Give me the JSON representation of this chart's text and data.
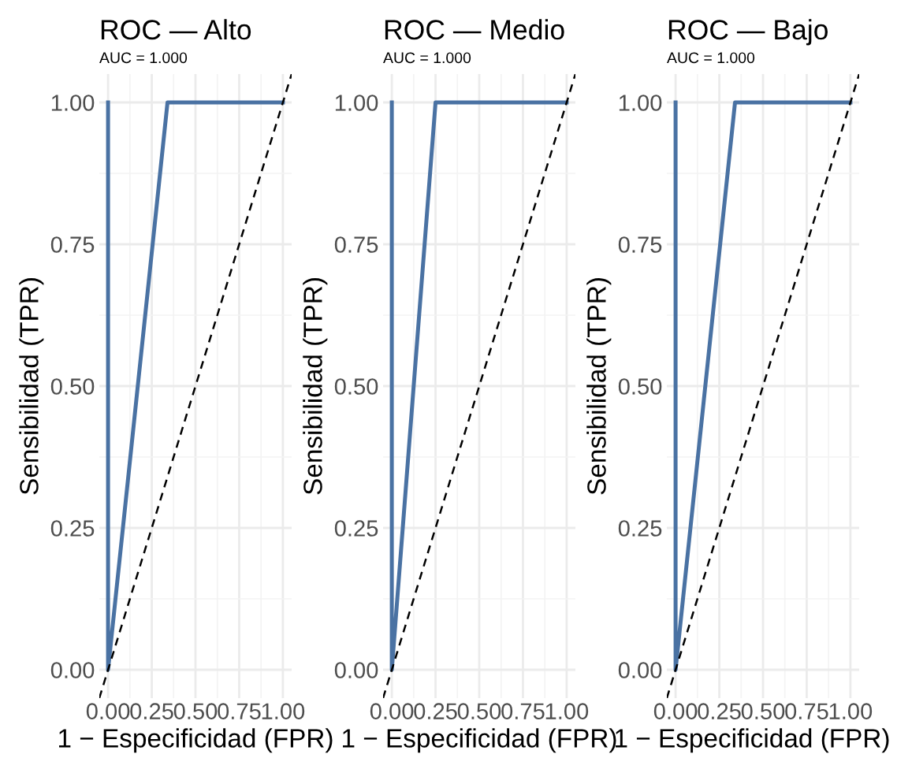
{
  "chart_data": [
    {
      "type": "line",
      "title": "ROC — Alto",
      "subtitle": "AUC = 1.000",
      "xlabel": "1 − Especificidad (FPR)",
      "ylabel": "Sensibilidad (TPR)",
      "xlim": [
        -0.05,
        1.05
      ],
      "ylim": [
        -0.05,
        1.05
      ],
      "xticks": [
        {
          "value": 0,
          "label": "0.00"
        },
        {
          "value": 0.25,
          "label": "0.25"
        },
        {
          "value": 0.5,
          "label": "0.50"
        },
        {
          "value": 0.75,
          "label": "0.75"
        },
        {
          "value": 1,
          "label": "1.00"
        }
      ],
      "yticks": [
        {
          "value": 0,
          "label": "0.00"
        },
        {
          "value": 0.25,
          "label": "0.25"
        },
        {
          "value": 0.5,
          "label": "0.50"
        },
        {
          "value": 0.75,
          "label": "0.75"
        },
        {
          "value": 1,
          "label": "1.00"
        }
      ],
      "grid": true,
      "marker": "none",
      "series": [
        {
          "color": "#4a72a3",
          "x": [
            0,
            0,
            0.34,
            1
          ],
          "values": [
            1,
            0,
            1,
            1
          ],
          "line_style": "solid"
        },
        {
          "color": "#000000",
          "x": [
            -0.05,
            1.05
          ],
          "values": [
            -0.05,
            1.05
          ],
          "line_style": "dashed"
        }
      ]
    },
    {
      "type": "line",
      "title": "ROC — Medio",
      "subtitle": "AUC = 1.000",
      "xlabel": "1 − Especificidad (FPR)",
      "ylabel": "Sensibilidad (TPR)",
      "xlim": [
        -0.05,
        1.05
      ],
      "ylim": [
        -0.05,
        1.05
      ],
      "xticks": [
        {
          "value": 0,
          "label": "0.00"
        },
        {
          "value": 0.25,
          "label": "0.25"
        },
        {
          "value": 0.5,
          "label": "0.50"
        },
        {
          "value": 0.75,
          "label": "0.75"
        },
        {
          "value": 1,
          "label": "1.00"
        }
      ],
      "yticks": [
        {
          "value": 0,
          "label": "0.00"
        },
        {
          "value": 0.25,
          "label": "0.25"
        },
        {
          "value": 0.5,
          "label": "0.50"
        },
        {
          "value": 0.75,
          "label": "0.75"
        },
        {
          "value": 1,
          "label": "1.00"
        }
      ],
      "grid": true,
      "marker": "none",
      "series": [
        {
          "color": "#4a72a3",
          "x": [
            0,
            0,
            0.25,
            1
          ],
          "values": [
            1,
            0,
            1,
            1
          ],
          "line_style": "solid"
        },
        {
          "color": "#000000",
          "x": [
            -0.05,
            1.05
          ],
          "values": [
            -0.05,
            1.05
          ],
          "line_style": "dashed"
        }
      ]
    },
    {
      "type": "line",
      "title": "ROC — Bajo",
      "subtitle": "AUC = 1.000",
      "xlabel": "1 − Especificidad (FPR)",
      "ylabel": "Sensibilidad (TPR)",
      "xlim": [
        -0.05,
        1.05
      ],
      "ylim": [
        -0.05,
        1.05
      ],
      "xticks": [
        {
          "value": 0,
          "label": "0.00"
        },
        {
          "value": 0.25,
          "label": "0.25"
        },
        {
          "value": 0.5,
          "label": "0.50"
        },
        {
          "value": 0.75,
          "label": "0.75"
        },
        {
          "value": 1,
          "label": "1.00"
        }
      ],
      "yticks": [
        {
          "value": 0,
          "label": "0.00"
        },
        {
          "value": 0.25,
          "label": "0.25"
        },
        {
          "value": 0.5,
          "label": "0.50"
        },
        {
          "value": 0.75,
          "label": "0.75"
        },
        {
          "value": 1,
          "label": "1.00"
        }
      ],
      "grid": true,
      "marker": "none",
      "series": [
        {
          "color": "#4a72a3",
          "x": [
            0,
            0,
            0.34,
            1
          ],
          "values": [
            1,
            0,
            1,
            1
          ],
          "line_style": "solid"
        },
        {
          "color": "#000000",
          "x": [
            -0.05,
            1.05
          ],
          "values": [
            -0.05,
            1.05
          ],
          "line_style": "dashed"
        }
      ]
    }
  ]
}
